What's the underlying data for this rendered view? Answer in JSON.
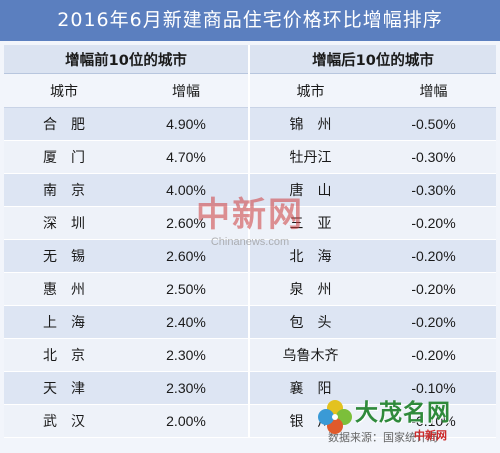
{
  "title": "2016年6月新建商品住宅价格环比增幅排序",
  "groups": {
    "top": "增幅前10位的城市",
    "bottom": "增幅后10位的城市"
  },
  "columns": {
    "city": "城市",
    "growth": "增幅"
  },
  "rows": [
    {
      "top_city": "合　肥",
      "top_growth": "4.90%",
      "bottom_city": "锦　州",
      "bottom_growth": "-0.50%"
    },
    {
      "top_city": "厦　门",
      "top_growth": "4.70%",
      "bottom_city": "牡丹江",
      "bottom_growth": "-0.30%"
    },
    {
      "top_city": "南　京",
      "top_growth": "4.00%",
      "bottom_city": "唐　山",
      "bottom_growth": "-0.30%"
    },
    {
      "top_city": "深　圳",
      "top_growth": "2.60%",
      "bottom_city": "三　亚",
      "bottom_growth": "-0.20%"
    },
    {
      "top_city": "无　锡",
      "top_growth": "2.60%",
      "bottom_city": "北　海",
      "bottom_growth": "-0.20%"
    },
    {
      "top_city": "惠　州",
      "top_growth": "2.50%",
      "bottom_city": "泉　州",
      "bottom_growth": "-0.20%"
    },
    {
      "top_city": "上　海",
      "top_growth": "2.40%",
      "bottom_city": "包　头",
      "bottom_growth": "-0.20%"
    },
    {
      "top_city": "北　京",
      "top_growth": "2.30%",
      "bottom_city": "乌鲁木齐",
      "bottom_growth": "-0.20%"
    },
    {
      "top_city": "天　津",
      "top_growth": "2.30%",
      "bottom_city": "襄　阳",
      "bottom_growth": "-0.10%"
    },
    {
      "top_city": "武　汉",
      "top_growth": "2.00%",
      "bottom_city": "银　川",
      "bottom_growth": "-0.10%"
    }
  ],
  "watermark": {
    "cn": "中新网",
    "en": "Chinanews.com"
  },
  "logo": {
    "text": "大茂名网",
    "icon": "four-leaf-clover-icon"
  },
  "source": {
    "text": "数据来源：国家统计局",
    "brand": "中新网"
  },
  "colors": {
    "title_bar": "#5b7fbf",
    "group_header": "#dbe3f1",
    "row_odd": "#dde5f3",
    "row_even": "#eef2f9",
    "watermark": "#cd3c3c",
    "logo_green": "#2f8a3b"
  }
}
